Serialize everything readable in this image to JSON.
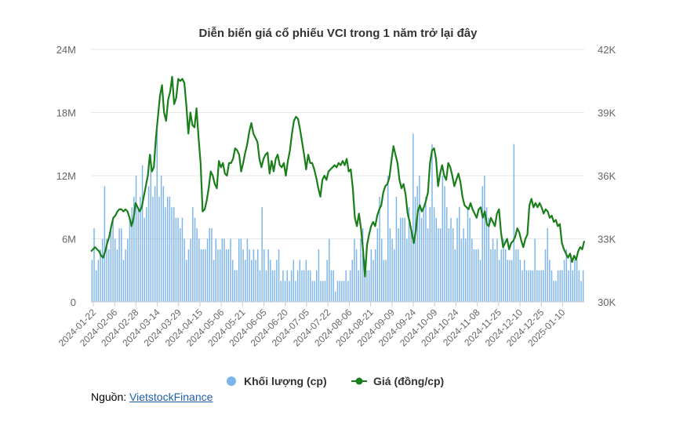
{
  "chart_data": {
    "type": "bar+line",
    "title": "Diễn biến giá cổ phiếu VCI trong 1 năm trở lại đây",
    "x_tick_labels": [
      "2024-01-22",
      "2024-02-06",
      "2024-02-28",
      "2024-03-14",
      "2024-03-29",
      "2024-04-15",
      "2024-05-06",
      "2024-05-21",
      "2024-06-05",
      "2024-06-20",
      "2024-07-05",
      "2024-07-22",
      "2024-08-06",
      "2024-08-21",
      "2024-09-09",
      "2024-09-24",
      "2024-10-09",
      "2024-10-24",
      "2024-11-08",
      "2024-11-25",
      "2024-12-10",
      "2024-12-25",
      "2025-01-10"
    ],
    "y_left": {
      "ticks": [
        "0",
        "6M",
        "12M",
        "18M",
        "24M"
      ],
      "min": 0,
      "max": 24
    },
    "y_right": {
      "ticks": [
        "30K",
        "33K",
        "36K",
        "39K",
        "42K"
      ],
      "min": 30,
      "max": 42
    },
    "series": [
      {
        "name": "Khối lượng (cp)",
        "type": "bar",
        "axis": "left",
        "color": "#7cb5ec",
        "values": [
          4,
          7,
          3,
          4,
          5,
          6,
          11,
          6,
          5,
          7,
          8,
          6,
          5,
          7,
          7,
          4,
          5,
          6,
          8,
          9,
          10,
          12,
          9,
          10,
          13,
          8,
          9,
          11,
          14,
          10,
          11,
          17,
          10,
          12,
          11,
          9,
          10,
          10,
          9,
          9,
          8,
          8,
          7,
          8,
          6,
          4,
          5,
          6,
          9,
          8,
          7,
          6,
          5,
          5,
          5,
          6,
          7,
          7,
          4,
          6,
          5,
          5,
          6,
          6,
          5,
          5,
          6,
          4,
          3,
          3,
          6,
          6,
          5,
          4,
          6,
          5,
          4,
          5,
          4,
          5,
          3,
          9,
          5,
          3,
          5,
          4,
          3,
          3,
          4,
          5,
          2,
          3,
          2,
          3,
          2,
          3,
          4,
          2,
          3,
          4,
          3,
          3,
          4,
          3,
          3,
          2,
          2,
          3,
          5,
          2,
          2,
          2,
          4,
          6,
          3,
          3,
          1,
          2,
          2,
          2,
          2,
          3,
          2,
          3,
          4,
          6,
          5,
          3,
          6,
          7,
          4,
          3,
          3,
          5,
          4,
          5,
          7,
          10,
          6,
          4,
          4,
          12,
          7,
          6,
          5,
          10,
          7,
          8,
          8,
          8,
          6,
          9,
          7,
          16,
          10,
          11,
          12,
          8,
          9,
          10,
          7,
          9,
          15,
          9,
          8,
          7,
          7,
          12,
          11,
          9,
          7,
          8,
          7,
          5,
          8,
          9,
          6,
          7,
          6,
          9,
          8,
          6,
          5,
          5,
          5,
          4,
          11,
          12,
          9,
          8,
          5,
          6,
          5,
          6,
          4,
          5,
          6,
          5,
          4,
          4,
          4,
          15,
          5,
          5,
          4,
          3,
          4,
          3,
          3,
          3,
          3,
          6,
          3,
          3,
          3,
          3,
          5,
          7,
          4,
          3,
          2,
          2,
          3,
          3,
          3,
          4,
          5,
          3,
          4,
          3,
          4,
          4,
          3,
          2,
          3
        ]
      },
      {
        "name": "Giá (đồng/cp)",
        "type": "line",
        "axis": "right",
        "color": "#1a7f1a",
        "values": [
          32.4,
          32.5,
          32.6,
          32.5,
          32.4,
          32.2,
          32.1,
          32.4,
          32.8,
          33.1,
          33.6,
          34.0,
          34.1,
          34.3,
          34.4,
          34.4,
          34.3,
          34.4,
          34.3,
          34.0,
          33.6,
          34.0,
          34.7,
          34.5,
          34.3,
          34.5,
          35.0,
          35.5,
          36.0,
          37.0,
          36.2,
          36.4,
          37.8,
          38.8,
          39.8,
          40.3,
          39.0,
          38.6,
          39.6,
          40.0,
          40.7,
          39.4,
          39.7,
          40.6,
          40.5,
          40.6,
          40.4,
          39.3,
          38.0,
          39.0,
          38.4,
          38.3,
          39.2,
          37.8,
          36.6,
          34.3,
          34.4,
          34.8,
          35.4,
          36.2,
          36.0,
          35.6,
          35.4,
          36.7,
          36.4,
          36.6,
          36.1,
          36.0,
          36.6,
          36.6,
          36.8,
          37.3,
          37.2,
          37.0,
          36.2,
          36.6,
          37.1,
          37.5,
          38.1,
          38.5,
          38.0,
          37.8,
          37.6,
          36.8,
          36.4,
          36.8,
          37.0,
          37.1,
          36.1,
          36.7,
          36.2,
          36.8,
          37.0,
          36.5,
          36.4,
          36.6,
          36.0,
          36.7,
          37.2,
          38.0,
          38.6,
          38.8,
          38.7,
          38.2,
          37.6,
          37.0,
          36.3,
          37.0,
          36.6,
          36.6,
          36.3,
          35.9,
          35.4,
          35.0,
          35.8,
          36.0,
          35.8,
          36.2,
          36.3,
          36.4,
          36.5,
          36.4,
          36.6,
          36.5,
          36.7,
          36.5,
          36.8,
          36.2,
          36.3,
          35.4,
          34.0,
          33.6,
          34.2,
          33.5,
          32.5,
          31.2,
          32.7,
          33.2,
          33.6,
          33.8,
          33.6,
          34.1,
          34.4,
          34.6,
          35.2,
          35.5,
          35.6,
          35.9,
          36.7,
          37.4,
          37.0,
          36.6,
          35.8,
          35.4,
          35.6,
          35.1,
          34.2,
          33.8,
          33.3,
          32.8,
          33.4,
          34.3,
          34.6,
          34.3,
          34.5,
          34.8,
          35.2,
          36.6,
          37.2,
          37.3,
          36.8,
          35.5,
          36.1,
          36.5,
          36.0,
          35.8,
          36.6,
          36.4,
          36.0,
          35.5,
          35.8,
          36.1,
          35.7,
          35.0,
          34.6,
          34.5,
          34.4,
          34.7,
          34.4,
          34.2,
          34.0,
          34.4,
          34.5,
          34.0,
          34.3,
          33.7,
          33.6,
          34.0,
          33.8,
          33.6,
          34.2,
          34.4,
          33.3,
          32.6,
          32.8,
          33.0,
          32.5,
          32.8,
          32.9,
          33.1,
          33.5,
          33.3,
          32.9,
          32.6,
          33.0,
          33.2,
          34.6,
          34.9,
          34.5,
          34.7,
          34.5,
          34.7,
          34.5,
          34.2,
          34.4,
          34.3,
          34.0,
          34.1,
          33.8,
          33.9,
          33.6,
          33.7,
          32.8,
          32.5,
          32.3,
          32.1,
          32.3,
          31.9,
          32.2,
          32.0,
          32.4,
          32.6,
          32.5,
          32.9
        ]
      }
    ],
    "legend": "bottom"
  },
  "source": {
    "label": "Nguồn: ",
    "link_text": "VietstockFinance"
  }
}
